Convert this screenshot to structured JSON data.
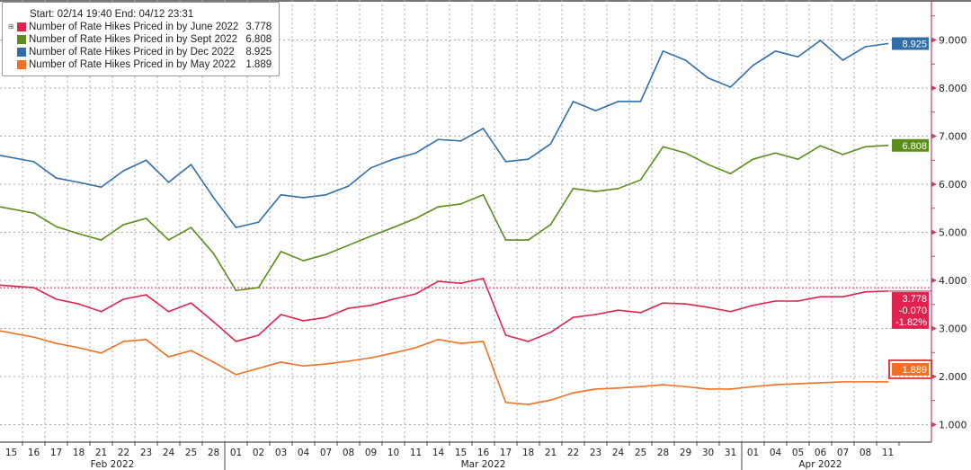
{
  "legend": {
    "header": "Start: 02/14 19:40 End: 04/12 23:31",
    "expand_icon": "plus-box-icon"
  },
  "chart_data": {
    "type": "line",
    "title": "",
    "xlabel": "",
    "ylabel": "",
    "ylim": [
      0.6,
      9.9
    ],
    "y_axis_side": "right",
    "y_ticks": [
      "1.000",
      "2.000",
      "3.000",
      "4.000",
      "5.000",
      "6.000",
      "7.000",
      "8.000",
      "9.000"
    ],
    "grid": true,
    "legend_position": "top-left",
    "x": [
      "15",
      "16",
      "17",
      "18",
      "21",
      "22",
      "23",
      "24",
      "25",
      "28",
      "01",
      "02",
      "03",
      "04",
      "07",
      "08",
      "09",
      "10",
      "11",
      "14",
      "15",
      "16",
      "17",
      "18",
      "21",
      "22",
      "23",
      "24",
      "25",
      "28",
      "29",
      "30",
      "31",
      "01",
      "04",
      "05",
      "06",
      "07",
      "08",
      "11"
    ],
    "months": [
      {
        "label": "Feb 2022",
        "days": 10
      },
      {
        "label": "Mar 2022",
        "days": 23
      },
      {
        "label": "Apr 2022",
        "days": 7
      }
    ],
    "series": [
      {
        "name": "Number of Rate Hikes Priced in by June 2022",
        "last": "3.778",
        "color": "#e0234e",
        "values": [
          3.9,
          3.85,
          3.61,
          3.51,
          3.35,
          3.61,
          3.7,
          3.35,
          3.53,
          3.14,
          2.73,
          2.86,
          3.29,
          3.16,
          3.23,
          3.42,
          3.48,
          3.61,
          3.72,
          3.98,
          3.94,
          4.04,
          2.86,
          2.73,
          2.92,
          3.23,
          3.29,
          3.38,
          3.33,
          3.53,
          3.51,
          3.44,
          3.35,
          3.48,
          3.57,
          3.57,
          3.66,
          3.66,
          3.76,
          3.778
        ]
      },
      {
        "name": "Number of Rate Hikes Priced in by Sept 2022",
        "last": "6.808",
        "color": "#5b8c1c",
        "values": [
          5.53,
          5.4,
          5.12,
          4.97,
          4.84,
          5.16,
          5.29,
          4.84,
          5.1,
          4.56,
          3.79,
          3.85,
          4.6,
          4.41,
          4.54,
          4.73,
          4.92,
          5.1,
          5.29,
          5.53,
          5.59,
          5.78,
          4.84,
          4.84,
          5.16,
          5.91,
          5.85,
          5.91,
          6.09,
          6.78,
          6.65,
          6.41,
          6.22,
          6.52,
          6.65,
          6.52,
          6.8,
          6.62,
          6.78,
          6.808
        ]
      },
      {
        "name": "Number of Rate Hikes Priced in by Dec 2022",
        "last": "8.925",
        "color": "#2f6ea8",
        "values": [
          6.6,
          6.47,
          6.13,
          6.04,
          5.94,
          6.28,
          6.5,
          6.04,
          6.41,
          5.72,
          5.1,
          5.21,
          5.78,
          5.72,
          5.78,
          5.96,
          6.34,
          6.52,
          6.65,
          6.93,
          6.9,
          7.16,
          6.47,
          6.52,
          6.84,
          7.72,
          7.53,
          7.72,
          7.72,
          8.77,
          8.58,
          8.21,
          8.02,
          8.47,
          8.77,
          8.65,
          8.99,
          8.58,
          8.86,
          8.925
        ]
      },
      {
        "name": "Number of Rate Hikes Priced in by May 2022",
        "last": "1.889",
        "color": "#f07022",
        "values": [
          2.95,
          2.82,
          2.69,
          2.6,
          2.49,
          2.73,
          2.77,
          2.41,
          2.54,
          2.3,
          2.04,
          2.17,
          2.3,
          2.22,
          2.26,
          2.32,
          2.39,
          2.49,
          2.6,
          2.77,
          2.69,
          2.73,
          1.46,
          1.42,
          1.51,
          1.66,
          1.74,
          1.76,
          1.79,
          1.83,
          1.79,
          1.74,
          1.74,
          1.79,
          1.83,
          1.85,
          1.87,
          1.89,
          1.89,
          1.889
        ]
      }
    ],
    "june_badge": {
      "value": "3.778",
      "change": "-0.070",
      "pct_change": "-1.82%",
      "prev_close": 3.848
    }
  }
}
